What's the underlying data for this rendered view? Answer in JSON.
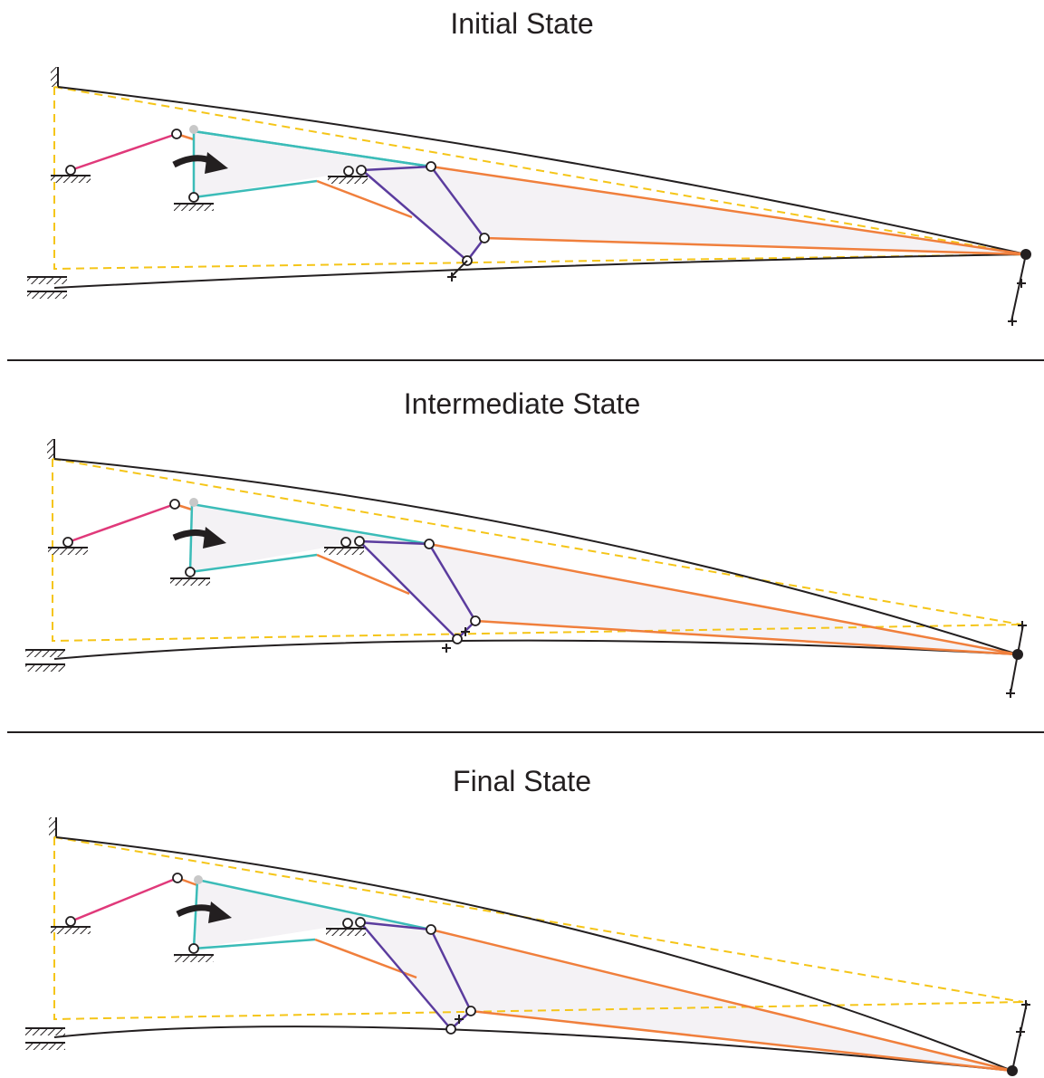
{
  "panels": [
    {
      "title": "Initial State"
    },
    {
      "title": "Intermediate State"
    },
    {
      "title": "Final State"
    }
  ],
  "colors": {
    "beam": "#231f20",
    "dashed_reference": "#f5c518",
    "crank_link": "#e0397a",
    "teal_link": "#3bbcb8",
    "orange_link": "#f07f3c",
    "purple_link": "#5b3c9e",
    "fill": "#f4f2f5"
  }
}
